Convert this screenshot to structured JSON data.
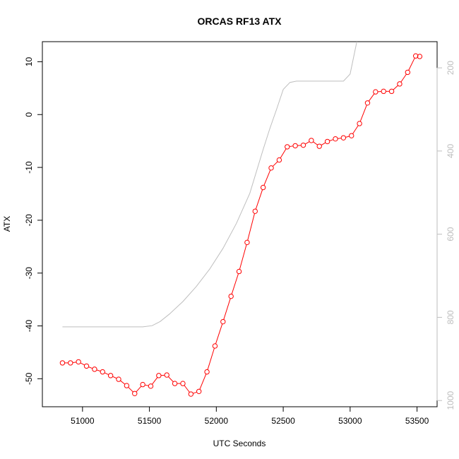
{
  "chart_data": {
    "type": "line",
    "title": "ORCAS RF13 ATX",
    "xlabel": "UTC Seconds",
    "ylabel": "ATX",
    "xlim": [
      50700,
      53650
    ],
    "ylim": [
      -55.3,
      13.8
    ],
    "xticks": [
      51000,
      51500,
      52000,
      52500,
      53000,
      53500
    ],
    "yticks": [
      -50,
      -40,
      -30,
      -20,
      -10,
      0,
      10
    ],
    "y2ticks": [
      200,
      400,
      600,
      800,
      1000
    ],
    "y2lim": [
      1015,
      137
    ],
    "y2_reversed": true,
    "grid": false,
    "colors": {
      "series_atx": "#ff0000",
      "series_secondary": "#bebebe"
    },
    "series": [
      {
        "key": "atx",
        "style": "line-with-open-circles",
        "x": [
          50850,
          50910,
          50970,
          51030,
          51090,
          51150,
          51210,
          51270,
          51330,
          51390,
          51450,
          51510,
          51570,
          51630,
          51690,
          51750,
          51810,
          51870,
          51930,
          51990,
          52050,
          52110,
          52170,
          52230,
          52290,
          52350,
          52410,
          52470,
          52530,
          52590,
          52650,
          52710,
          52770,
          52830,
          52890,
          52950,
          53010,
          53070,
          53130,
          53190,
          53250,
          53310,
          53370,
          53430,
          53490,
          53520
        ],
        "y": [
          -47.0,
          -47.0,
          -46.8,
          -47.6,
          -48.2,
          -48.7,
          -49.4,
          -50.1,
          -51.3,
          -52.8,
          -51.1,
          -51.4,
          -49.4,
          -49.3,
          -50.9,
          -50.9,
          -52.9,
          -52.4,
          -48.7,
          -43.8,
          -39.2,
          -34.4,
          -29.7,
          -24.2,
          -18.3,
          -13.8,
          -10.1,
          -8.6,
          -6.1,
          -5.9,
          -5.8,
          -4.9,
          -6.0,
          -5.1,
          -4.6,
          -4.4,
          -4.0,
          -1.7,
          2.2,
          4.3,
          4.4,
          4.4,
          5.8,
          8.0,
          11.1,
          11.0
        ]
      },
      {
        "key": "secondary",
        "style": "line",
        "axis": "right",
        "x": [
          50850,
          51000,
          51200,
          51400,
          51450,
          51520,
          51580,
          51650,
          51750,
          51850,
          51950,
          52050,
          52150,
          52250,
          52350,
          52400,
          52450,
          52500,
          52550,
          52600,
          52700,
          52800,
          52900,
          52950,
          53000,
          53050
        ],
        "y": [
          823,
          823,
          823,
          823,
          823,
          820,
          810,
          792,
          762,
          726,
          684,
          634,
          574,
          502,
          396,
          346,
          300,
          252,
          235,
          232,
          232,
          232,
          232,
          232,
          215,
          137
        ]
      }
    ]
  }
}
